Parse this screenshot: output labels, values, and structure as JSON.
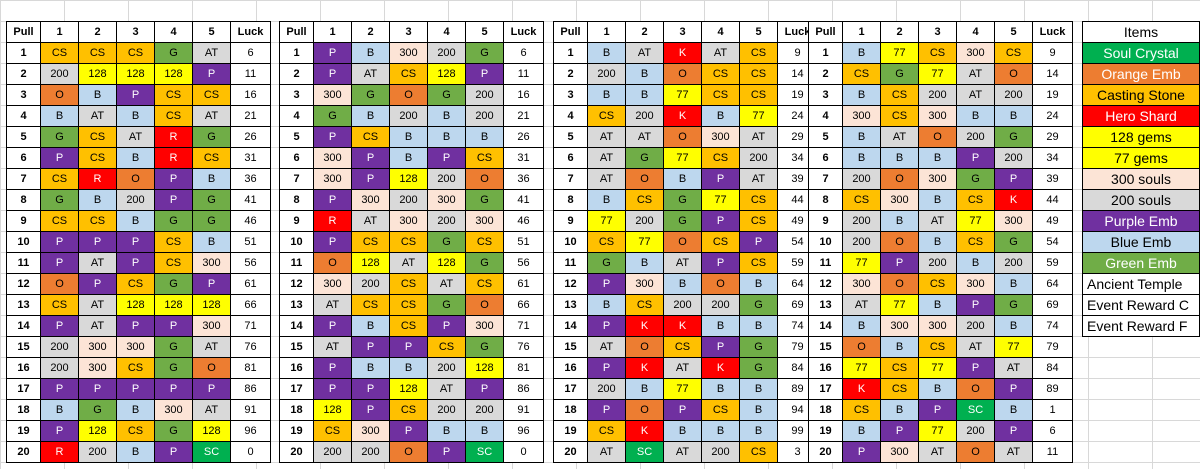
{
  "colors": {
    "CS": "#ffc000",
    "P": "#7030a0",
    "B": "#bdd7ee",
    "G": "#70ad47",
    "AT": "#d9d9d9",
    "O": "#ed7d31",
    "R": "#ff0000",
    "K": "#ff0000",
    "SC": "#00b050",
    "128": "#ffff00",
    "77": "#ffff00",
    "300": "#fce4d6",
    "200": "#d9d9d9",
    "Pcell": "#7030a0",
    "CSblue": "#00b0f0"
  },
  "headers": [
    "Pull",
    "1",
    "2",
    "3",
    "4",
    "5",
    "Luck"
  ],
  "tables": [
    {
      "rows": [
        [
          "1",
          "CS",
          "CS",
          "CS",
          "G",
          "AT",
          "6"
        ],
        [
          "2",
          "200",
          "128",
          "128",
          "128",
          "P",
          "11"
        ],
        [
          "3",
          "O",
          "B",
          "P",
          "CS",
          "CS",
          "16"
        ],
        [
          "4",
          "B",
          "AT",
          "B",
          "CS",
          "AT",
          "21"
        ],
        [
          "5",
          "G",
          "CS",
          "AT",
          "R",
          "G",
          "26"
        ],
        [
          "6",
          "P",
          "CS",
          "B",
          "R",
          "CS",
          "31"
        ],
        [
          "7",
          "CS",
          "R",
          "O",
          "P",
          "B",
          "36"
        ],
        [
          "8",
          "G",
          "B",
          "200",
          "P",
          "G",
          "41"
        ],
        [
          "9",
          "CS",
          "CS",
          "B",
          "G",
          "G",
          "46"
        ],
        [
          "10",
          "P",
          "P",
          "P",
          "CS",
          "B",
          "51"
        ],
        [
          "11",
          "P",
          "AT",
          "P",
          "CS",
          "300",
          "56"
        ],
        [
          "12",
          "O",
          "P",
          "CS",
          "G",
          "P",
          "61"
        ],
        [
          "13",
          "CS",
          "AT",
          "128",
          "128",
          "128",
          "66"
        ],
        [
          "14",
          "P",
          "AT",
          "P",
          "P",
          "300",
          "71"
        ],
        [
          "15",
          "200",
          "300",
          "300",
          "G",
          "AT",
          "76"
        ],
        [
          "16",
          "200",
          "300",
          "CS",
          "G",
          "O",
          "81"
        ],
        [
          "17",
          "P",
          "P",
          "P",
          "P",
          "P",
          "86"
        ],
        [
          "18",
          "B",
          "G",
          "B",
          "300",
          "AT",
          "91"
        ],
        [
          "19",
          "P",
          "128",
          "CS",
          "G",
          "128",
          "96"
        ],
        [
          "20",
          "R",
          "200",
          "B",
          "P",
          "SC",
          "0"
        ]
      ]
    },
    {
      "rows": [
        [
          "1",
          "P",
          "B",
          "300",
          "200",
          "G",
          "6"
        ],
        [
          "2",
          "P",
          "AT",
          "CS",
          "128",
          "P",
          "11"
        ],
        [
          "3",
          "300",
          "G",
          "O",
          "G",
          "200",
          "16"
        ],
        [
          "4",
          "G",
          "B",
          "200",
          "B",
          "200",
          "21"
        ],
        [
          "5",
          "P",
          "CS",
          "B",
          "B",
          "B",
          "26"
        ],
        [
          "6",
          "300",
          "P",
          "B",
          "P",
          "CS",
          "31"
        ],
        [
          "7",
          "300",
          "P",
          "128",
          "200",
          "O",
          "36"
        ],
        [
          "8",
          "P",
          "300",
          "200",
          "300",
          "G",
          "41"
        ],
        [
          "9",
          "R",
          "AT",
          "300",
          "200",
          "300",
          "46"
        ],
        [
          "10",
          "P",
          "CS",
          "CS",
          "G",
          "CS",
          "51"
        ],
        [
          "11",
          "O",
          "128",
          "AT",
          "128",
          "G",
          "56"
        ],
        [
          "12",
          "300",
          "200",
          "CS",
          "AT",
          "CS",
          "61"
        ],
        [
          "13",
          "AT",
          "CS",
          "CS",
          "G",
          "O",
          "66"
        ],
        [
          "14",
          "P",
          "B",
          "CS",
          "P",
          "300",
          "71"
        ],
        [
          "15",
          "AT",
          "P",
          "P",
          "CS",
          "G",
          "76"
        ],
        [
          "16",
          "P",
          "B",
          "B",
          "200",
          "128",
          "81"
        ],
        [
          "17",
          "P",
          "P",
          "128",
          "AT",
          "P",
          "86"
        ],
        [
          "18",
          "128",
          "P",
          "CS",
          "200",
          "200",
          "91"
        ],
        [
          "19",
          "CS",
          "300",
          "P",
          "B",
          "B",
          "96"
        ],
        [
          "20",
          "200",
          "200",
          "O",
          "P",
          "SC",
          "0"
        ]
      ]
    },
    {
      "rows": [
        [
          "1",
          "B",
          "AT",
          "K",
          "AT",
          "CS",
          "9"
        ],
        [
          "2",
          "200",
          "B",
          "O",
          "CS",
          "CS",
          "14"
        ],
        [
          "3",
          "B",
          "B",
          "77",
          "CS",
          "CS",
          "19"
        ],
        [
          "4",
          "CS",
          "200",
          "K",
          "B",
          "77",
          "24"
        ],
        [
          "5",
          "AT",
          "AT",
          "O",
          "300",
          "AT",
          "29"
        ],
        [
          "6",
          "AT",
          "G",
          "77",
          "CS",
          "200",
          "34"
        ],
        [
          "7",
          "AT",
          "O",
          "B",
          "P",
          "AT",
          "39"
        ],
        [
          "8",
          "B",
          "CS",
          "G",
          "77",
          "CS",
          "44"
        ],
        [
          "9",
          "77",
          "200",
          "G",
          "P",
          "CS",
          "49"
        ],
        [
          "10",
          "CS",
          "77",
          "O",
          "CS",
          "P",
          "54"
        ],
        [
          "11",
          "G",
          "B",
          "AT",
          "P",
          "CS",
          "59"
        ],
        [
          "12",
          "P",
          "300",
          "B",
          "O",
          "B",
          "64"
        ],
        [
          "13",
          "B",
          "CS",
          "200",
          "200",
          "G",
          "69"
        ],
        [
          "14",
          "P",
          "K",
          "K",
          "B",
          "B",
          "74"
        ],
        [
          "15",
          "AT",
          "O",
          "CS",
          "P",
          "G",
          "79"
        ],
        [
          "16",
          "P",
          "K",
          "AT",
          "K",
          "G",
          "84"
        ],
        [
          "17",
          "200",
          "B",
          "77",
          "B",
          "B",
          "89"
        ],
        [
          "18",
          "P",
          "O",
          "P",
          "CS",
          "B",
          "94"
        ],
        [
          "19",
          "CS",
          "K",
          "B",
          "B",
          "B",
          "99"
        ],
        [
          "20",
          "AT",
          "SC",
          "AT",
          "200",
          "CS",
          "3"
        ]
      ]
    },
    {
      "rows": [
        [
          "1",
          "B",
          "77",
          "CS",
          "300",
          "CS",
          "9"
        ],
        [
          "2",
          "CS",
          "G",
          "77",
          "AT",
          "O",
          "14"
        ],
        [
          "3",
          "B",
          "CS",
          "200",
          "AT",
          "200",
          "19"
        ],
        [
          "4",
          "300",
          "CS",
          "300",
          "B",
          "B",
          "24"
        ],
        [
          "5",
          "B",
          "AT",
          "O",
          "200",
          "G",
          "29"
        ],
        [
          "6",
          "B",
          "B",
          "B",
          "P",
          "200",
          "34"
        ],
        [
          "7",
          "200",
          "O",
          "300",
          "G",
          "P",
          "39"
        ],
        [
          "8",
          "CS",
          "300",
          "B",
          "CS",
          "K",
          "44"
        ],
        [
          "9",
          "200",
          "B",
          "AT",
          "77",
          "300",
          "49"
        ],
        [
          "10",
          "200",
          "O",
          "B",
          "CS",
          "G",
          "54"
        ],
        [
          "11",
          "77",
          "P",
          "200",
          "B",
          "200",
          "59"
        ],
        [
          "12",
          "300",
          "O",
          "CS",
          "300",
          "B",
          "64"
        ],
        [
          "13",
          "AT",
          "77",
          "B",
          "P",
          "G",
          "69"
        ],
        [
          "14",
          "B",
          "300",
          "300",
          "200",
          "B",
          "74"
        ],
        [
          "15",
          "O",
          "B",
          "CS",
          "AT",
          "77",
          "79"
        ],
        [
          "16",
          "77",
          "CS",
          "77",
          "P",
          "AT",
          "84"
        ],
        [
          "17",
          "K",
          "CS",
          "B",
          "O",
          "P",
          "89"
        ],
        [
          "18",
          "CS",
          "B",
          "P",
          "SC",
          "B",
          "1"
        ],
        [
          "19",
          "B",
          "P",
          "77",
          "200",
          "P",
          "6"
        ],
        [
          "20",
          "P",
          "300",
          "AT",
          "O",
          "AT",
          "11"
        ]
      ]
    }
  ],
  "legend": {
    "title": "Items",
    "items": [
      {
        "label": "Soul Crystal",
        "bg": "#00b050",
        "fg": "#ffffff"
      },
      {
        "label": "Orange Emb",
        "bg": "#ed7d31",
        "fg": "#ffffff"
      },
      {
        "label": "Casting Stone",
        "bg": "#ffc000",
        "fg": "#000000"
      },
      {
        "label": "Hero Shard",
        "bg": "#ff0000",
        "fg": "#ffffff"
      },
      {
        "label": "128 gems",
        "bg": "#ffff00",
        "fg": "#000000"
      },
      {
        "label": "77 gems",
        "bg": "#ffff00",
        "fg": "#000000"
      },
      {
        "label": "300 souls",
        "bg": "#fce4d6",
        "fg": "#000000"
      },
      {
        "label": "200 souls",
        "bg": "#d9d9d9",
        "fg": "#000000"
      },
      {
        "label": "Purple Emb",
        "bg": "#7030a0",
        "fg": "#ffffff"
      },
      {
        "label": "Blue Emb",
        "bg": "#bdd7ee",
        "fg": "#000000"
      },
      {
        "label": "Green Emb",
        "bg": "#70ad47",
        "fg": "#ffffff"
      },
      {
        "label": "Ancient Temple",
        "bg": "#ffffff",
        "fg": "#000000"
      },
      {
        "label": "Event Reward C",
        "bg": "#ffffff",
        "fg": "#000000"
      },
      {
        "label": "Event Reward F",
        "bg": "#ffffff",
        "fg": "#000000"
      }
    ]
  }
}
